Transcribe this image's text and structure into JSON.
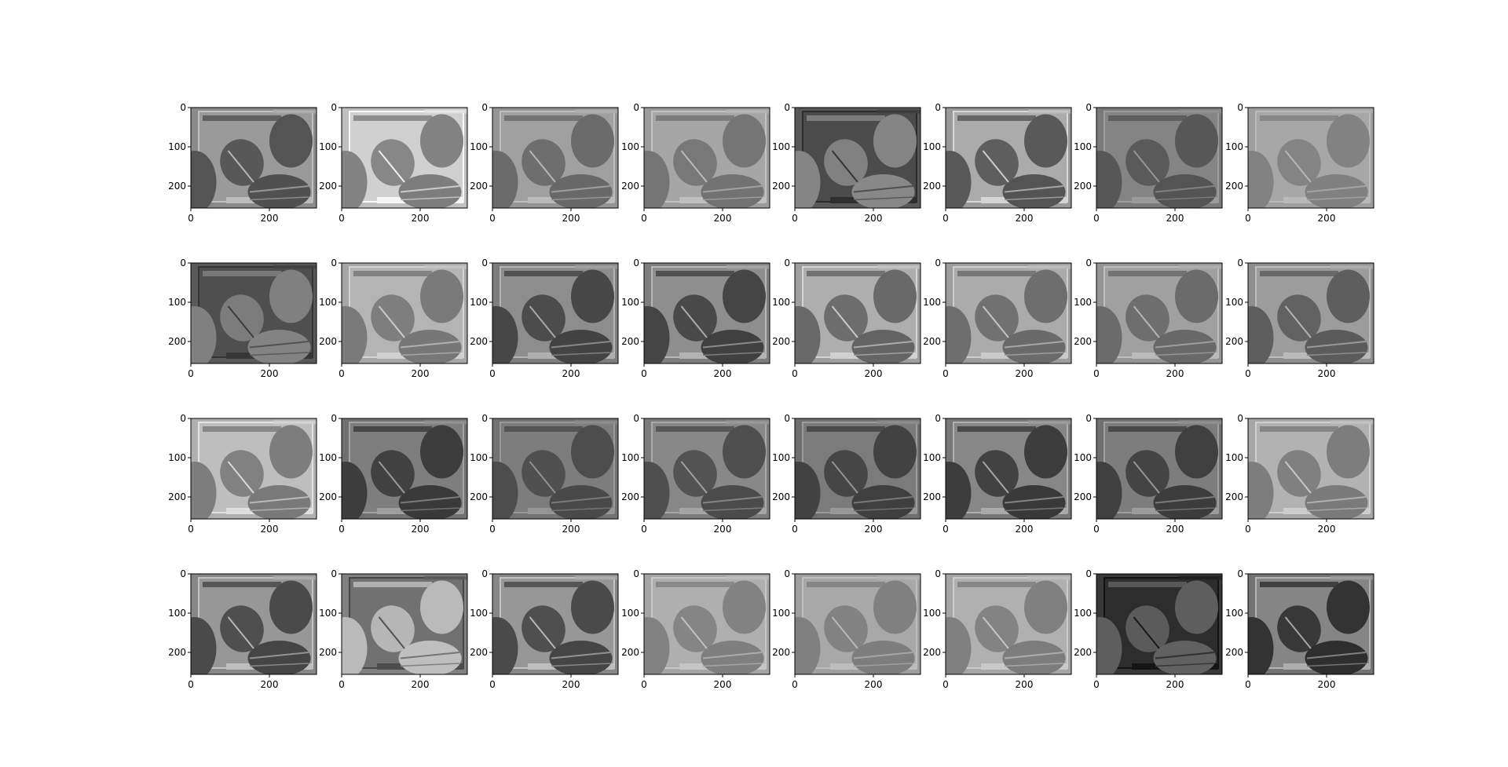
{
  "chart_data": {
    "type": "heatmap",
    "layout": {
      "rows": 4,
      "cols": 8
    },
    "colormap": "gray",
    "image_extent": {
      "width": 320,
      "height": 256
    },
    "xticks": [
      "0",
      "200"
    ],
    "yticks": [
      "0",
      "100",
      "200"
    ],
    "xtick_values": [
      0,
      200
    ],
    "ytick_values": [
      0,
      100,
      200
    ],
    "panels": [
      {
        "index": 1,
        "brightness": 0.5,
        "contrast": 0.85
      },
      {
        "index": 2,
        "brightness": 0.7,
        "contrast": 0.95
      },
      {
        "index": 3,
        "brightness": 0.55,
        "contrast": 0.65
      },
      {
        "index": 4,
        "brightness": 0.58,
        "contrast": 0.6
      },
      {
        "index": 5,
        "brightness": 0.62,
        "contrast": 0.7,
        "invert": true
      },
      {
        "index": 6,
        "brightness": 0.55,
        "contrast": 1.0
      },
      {
        "index": 7,
        "brightness": 0.45,
        "contrast": 0.55
      },
      {
        "index": 8,
        "brightness": 0.6,
        "contrast": 0.45
      },
      {
        "index": 9,
        "brightness": 0.62,
        "contrast": 0.6,
        "invert": true
      },
      {
        "index": 10,
        "brightness": 0.62,
        "contrast": 0.7
      },
      {
        "index": 11,
        "brightness": 0.45,
        "contrast": 0.85
      },
      {
        "index": 12,
        "brightness": 0.45,
        "contrast": 0.9
      },
      {
        "index": 13,
        "brightness": 0.58,
        "contrast": 0.85
      },
      {
        "index": 14,
        "brightness": 0.58,
        "contrast": 0.75
      },
      {
        "index": 15,
        "brightness": 0.55,
        "contrast": 0.65
      },
      {
        "index": 16,
        "brightness": 0.52,
        "contrast": 0.75
      },
      {
        "index": 17,
        "brightness": 0.65,
        "contrast": 0.8
      },
      {
        "index": 18,
        "brightness": 0.4,
        "contrast": 0.8
      },
      {
        "index": 19,
        "brightness": 0.42,
        "contrast": 0.6
      },
      {
        "index": 20,
        "brightness": 0.45,
        "contrast": 0.7
      },
      {
        "index": 21,
        "brightness": 0.4,
        "contrast": 0.7
      },
      {
        "index": 22,
        "brightness": 0.42,
        "contrast": 0.9
      },
      {
        "index": 23,
        "brightness": 0.4,
        "contrast": 0.75
      },
      {
        "index": 24,
        "brightness": 0.62,
        "contrast": 0.65
      },
      {
        "index": 25,
        "brightness": 0.48,
        "contrast": 0.95
      },
      {
        "index": 26,
        "brightness": 0.45,
        "contrast": 0.9,
        "invert": true
      },
      {
        "index": 27,
        "brightness": 0.48,
        "contrast": 0.95
      },
      {
        "index": 28,
        "brightness": 0.62,
        "contrast": 0.55
      },
      {
        "index": 29,
        "brightness": 0.6,
        "contrast": 0.5
      },
      {
        "index": 30,
        "brightness": 0.62,
        "contrast": 0.6
      },
      {
        "index": 31,
        "brightness": 0.75,
        "contrast": 0.6,
        "invert": true
      },
      {
        "index": 32,
        "brightness": 0.4,
        "contrast": 1.0
      }
    ]
  }
}
